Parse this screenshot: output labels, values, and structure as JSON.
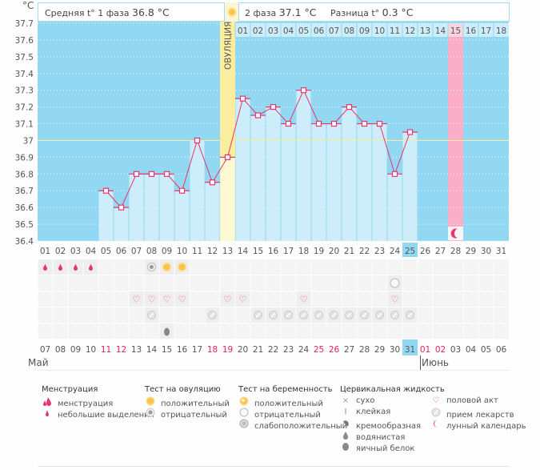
{
  "header": {
    "unit": "°C",
    "phase1_label": "Средняя t° 1 фаза",
    "phase1_value": "36.8 °C",
    "phase2_label": "2 фаза",
    "phase2_value": "37.1 °C",
    "diff_label": "Разница t°",
    "diff_value": "0.3 °C",
    "ovulation_label": "ОВУЛЯЦИЯ"
  },
  "colors": {
    "background_chart": "#92d8f2",
    "bar_fill": "#cdedfb",
    "ovulation": "#fcee9e",
    "ovulation_bar": "#fef8d4",
    "line": "#e8356b",
    "coverline": "#f4ec9c",
    "moon_column": "#fbaec7",
    "today": "#92d8f2"
  },
  "chart_data": {
    "type": "line",
    "title": "",
    "ylabel": "°C",
    "xlabel": "",
    "ylim": [
      36.4,
      37.7
    ],
    "yticks": [
      "37.7",
      "37.6",
      "37.5",
      "37.4",
      "37.3",
      "37.2",
      "37.1",
      "37",
      "36.9",
      "36.8",
      "36.7",
      "36.6",
      "36.5",
      "36.4"
    ],
    "cycle_days": [
      "01",
      "02",
      "03",
      "04",
      "05",
      "06",
      "07",
      "08",
      "09",
      "10",
      "11",
      "12",
      "13",
      "14",
      "15",
      "16",
      "17",
      "18",
      "19",
      "20",
      "21",
      "22",
      "23",
      "24",
      "25",
      "26",
      "27",
      "28",
      "29",
      "30",
      "31"
    ],
    "calendar_dates": [
      "07",
      "08",
      "09",
      "10",
      "11",
      "12",
      "13",
      "14",
      "15",
      "16",
      "17",
      "18",
      "19",
      "20",
      "21",
      "22",
      "23",
      "24",
      "25",
      "26",
      "27",
      "28",
      "29",
      "30",
      "31",
      "01",
      "02",
      "03",
      "04",
      "05",
      "06"
    ],
    "weekend_dates": [
      "11",
      "12",
      "18",
      "19",
      "25",
      "26",
      "01",
      "02"
    ],
    "months": [
      "Май",
      "Июнь"
    ],
    "series": [
      {
        "name": "Базальная температура",
        "values": [
          null,
          null,
          null,
          null,
          36.7,
          36.6,
          36.8,
          36.8,
          36.8,
          36.7,
          37.0,
          36.75,
          36.9,
          37.25,
          37.15,
          37.2,
          37.1,
          37.3,
          37.1,
          37.1,
          37.2,
          37.1,
          37.1,
          36.8,
          37.05,
          null,
          null,
          null,
          null,
          null,
          null
        ]
      }
    ],
    "coverline": 37.0,
    "ovulation_day": "13",
    "post_ovulation_days": [
      "01",
      "02",
      "03",
      "04",
      "05",
      "06",
      "07",
      "08",
      "09",
      "10",
      "11",
      "12",
      "13",
      "14",
      "15",
      "16",
      "17",
      "18"
    ],
    "highlight_post_ovulation_day": "15",
    "today_cycle_day": "25",
    "today_date": "31",
    "moon_cycle_day": "28",
    "grid": true
  },
  "events": {
    "menstruation_days": [
      "01",
      "02",
      "03",
      "04"
    ],
    "ovulation_test": [
      {
        "day": "08",
        "result": "negative"
      },
      {
        "day": "09",
        "result": "positive"
      },
      {
        "day": "10",
        "result": "positive"
      }
    ],
    "pregnancy_test": [
      {
        "day": "24",
        "result": "negative"
      }
    ],
    "intercourse_days": [
      "07",
      "08",
      "09",
      "10",
      "13",
      "14",
      "18",
      "24"
    ],
    "medication_days": [
      "08",
      "12",
      "15",
      "16",
      "17",
      "18",
      "19",
      "20",
      "21",
      "22",
      "23",
      "24",
      "25"
    ],
    "cervical_fluid": [
      {
        "day": "09",
        "type": "egg_white"
      }
    ]
  },
  "legend": {
    "groups": [
      {
        "title": "Менструация",
        "items": [
          {
            "icon": "menstruation-icon",
            "label": "менструация"
          },
          {
            "icon": "spotting-icon",
            "label": "небольшие выделения"
          }
        ]
      },
      {
        "title": "Тест на овуляцию",
        "items": [
          {
            "icon": "ovulation-positive-icon",
            "label": "положительный"
          },
          {
            "icon": "ovulation-negative-icon",
            "label": "отрицательный"
          }
        ]
      },
      {
        "title": "Тест на беременность",
        "items": [
          {
            "icon": "pregnancy-positive-icon",
            "label": "положительный"
          },
          {
            "icon": "pregnancy-negative-icon",
            "label": "отрицательный"
          },
          {
            "icon": "pregnancy-weak-icon",
            "label": "слабоположительный"
          }
        ]
      },
      {
        "title": "Цервикальная жидкость",
        "items": [
          {
            "icon": "dry-icon",
            "label": "сухо"
          },
          {
            "icon": "sticky-icon",
            "label": "клейкая"
          },
          {
            "icon": "creamy-icon",
            "label": "кремообразная"
          },
          {
            "icon": "watery-icon",
            "label": "водянистая"
          },
          {
            "icon": "egg-white-icon",
            "label": "яичный белок"
          }
        ]
      },
      {
        "title": "",
        "items": [
          {
            "icon": "heart-icon",
            "label": "половой акт"
          },
          {
            "icon": "pill-icon",
            "label": "прием лекарств"
          },
          {
            "icon": "moon-icon",
            "label": "лунный календарь"
          }
        ]
      }
    ]
  }
}
